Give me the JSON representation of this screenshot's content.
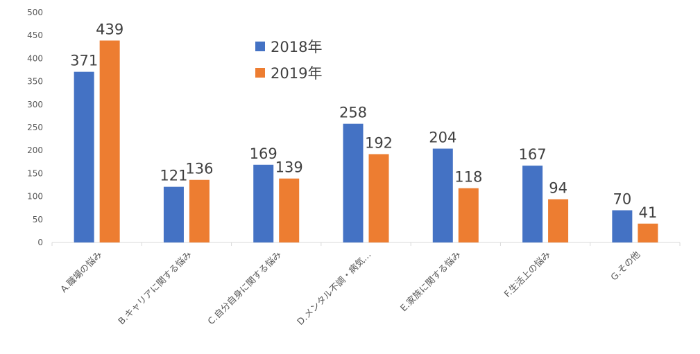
{
  "chart_data": {
    "type": "bar",
    "categories": [
      "A.職場の悩み",
      "B.キャリアに関する悩み",
      "C.自分自身に関する悩み",
      "D.メンタル不調・病気…",
      "E.家族に関する悩み",
      "F.生活上の悩み",
      "G.その他"
    ],
    "series": [
      {
        "name": "2018年",
        "color": "#4472C4",
        "values": [
          371,
          121,
          169,
          258,
          204,
          167,
          70
        ]
      },
      {
        "name": "2019年",
        "color": "#ED7D31",
        "values": [
          439,
          136,
          139,
          192,
          118,
          94,
          41
        ]
      }
    ],
    "yticks": [
      "0",
      "50",
      "100",
      "150",
      "200",
      "250",
      "300",
      "350",
      "400",
      "450",
      "500"
    ],
    "ylim": [
      0,
      500
    ],
    "grid": false,
    "legend_position": "top-center"
  }
}
